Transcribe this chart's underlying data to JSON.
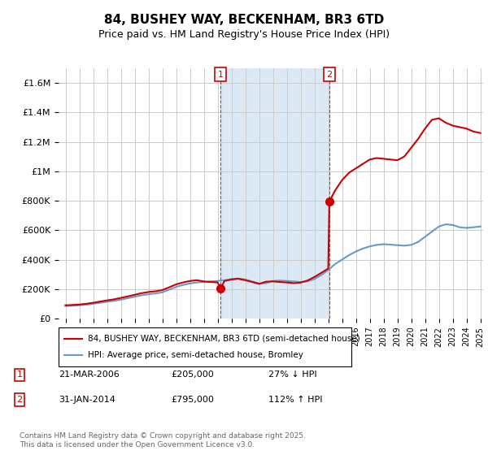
{
  "title": "84, BUSHEY WAY, BECKENHAM, BR3 6TD",
  "subtitle": "Price paid vs. HM Land Registry's House Price Index (HPI)",
  "ylim": [
    0,
    1700000
  ],
  "yticks": [
    0,
    200000,
    400000,
    600000,
    800000,
    1000000,
    1200000,
    1400000,
    1600000
  ],
  "ytick_labels": [
    "£0",
    "£200K",
    "£400K",
    "£600K",
    "£800K",
    "£1M",
    "£1.2M",
    "£1.4M",
    "£1.6M"
  ],
  "x_start_year": 1995,
  "x_end_year": 2025,
  "sale1_year": 2006.22,
  "sale1_price": 205000,
  "sale1_label": "1",
  "sale2_year": 2014.08,
  "sale2_price": 795000,
  "sale2_label": "2",
  "red_line_color": "#cc0000",
  "blue_line_color": "#6699cc",
  "shaded_color": "#dce9f5",
  "grid_color": "#cccccc",
  "background_color": "#ffffff",
  "legend_line1": "84, BUSHEY WAY, BECKENHAM, BR3 6TD (semi-detached house)",
  "legend_line2": "HPI: Average price, semi-detached house, Bromley",
  "annotation1_date": "21-MAR-2006",
  "annotation1_price": "£205,000",
  "annotation1_hpi": "27% ↓ HPI",
  "annotation2_date": "31-JAN-2014",
  "annotation2_price": "£795,000",
  "annotation2_hpi": "112% ↑ HPI",
  "footer": "Contains HM Land Registry data © Crown copyright and database right 2025.\nThis data is licensed under the Open Government Licence v3.0.",
  "hpi_data_x": [
    1995,
    1995.5,
    1996,
    1996.5,
    1997,
    1997.5,
    1998,
    1998.5,
    1999,
    1999.5,
    2000,
    2000.5,
    2001,
    2001.5,
    2002,
    2002.5,
    2003,
    2003.5,
    2004,
    2004.5,
    2005,
    2005.5,
    2006,
    2006.5,
    2007,
    2007.5,
    2008,
    2008.5,
    2009,
    2009.5,
    2010,
    2010.5,
    2011,
    2011.5,
    2012,
    2012.5,
    2013,
    2013.5,
    2014,
    2014.5,
    2015,
    2015.5,
    2016,
    2016.5,
    2017,
    2017.5,
    2018,
    2018.5,
    2019,
    2019.5,
    2020,
    2020.5,
    2021,
    2021.5,
    2022,
    2022.5,
    2023,
    2023.5,
    2024,
    2024.5,
    2025
  ],
  "hpi_data_y": [
    85000,
    87000,
    90000,
    94000,
    100000,
    107000,
    114000,
    120000,
    128000,
    138000,
    148000,
    158000,
    165000,
    170000,
    178000,
    196000,
    215000,
    228000,
    238000,
    245000,
    248000,
    252000,
    255000,
    260000,
    268000,
    272000,
    265000,
    252000,
    238000,
    240000,
    255000,
    258000,
    255000,
    252000,
    248000,
    252000,
    268000,
    295000,
    330000,
    370000,
    400000,
    430000,
    455000,
    475000,
    490000,
    500000,
    505000,
    502000,
    498000,
    495000,
    500000,
    520000,
    555000,
    590000,
    625000,
    640000,
    635000,
    620000,
    615000,
    620000,
    625000
  ],
  "red_data_x": [
    1995,
    1995.5,
    1996,
    1996.5,
    1997,
    1997.5,
    1998,
    1998.5,
    1999,
    1999.5,
    2000,
    2000.5,
    2001,
    2001.5,
    2002,
    2002.5,
    2003,
    2003.5,
    2004,
    2004.5,
    2005,
    2005.5,
    2006,
    2006.22,
    2006.5,
    2007,
    2007.5,
    2008,
    2008.5,
    2009,
    2009.5,
    2010,
    2010.5,
    2011,
    2011.5,
    2012,
    2012.5,
    2013,
    2013.5,
    2014,
    2014.08,
    2014.5,
    2015,
    2015.5,
    2016,
    2016.5,
    2017,
    2017.5,
    2018,
    2018.5,
    2019,
    2019.5,
    2020,
    2020.5,
    2021,
    2021.5,
    2022,
    2022.5,
    2023,
    2023.5,
    2024,
    2024.5,
    2025
  ],
  "red_data_y": [
    90000,
    92000,
    95000,
    100000,
    107000,
    115000,
    123000,
    130000,
    140000,
    150000,
    161000,
    172000,
    180000,
    185000,
    193000,
    212000,
    232000,
    245000,
    255000,
    260000,
    252000,
    248000,
    245000,
    205000,
    255000,
    265000,
    270000,
    260000,
    248000,
    235000,
    250000,
    252000,
    248000,
    245000,
    240000,
    244000,
    258000,
    282000,
    310000,
    340000,
    795000,
    870000,
    940000,
    990000,
    1020000,
    1050000,
    1080000,
    1090000,
    1085000,
    1080000,
    1075000,
    1100000,
    1160000,
    1220000,
    1290000,
    1350000,
    1360000,
    1330000,
    1310000,
    1300000,
    1290000,
    1270000,
    1260000
  ]
}
